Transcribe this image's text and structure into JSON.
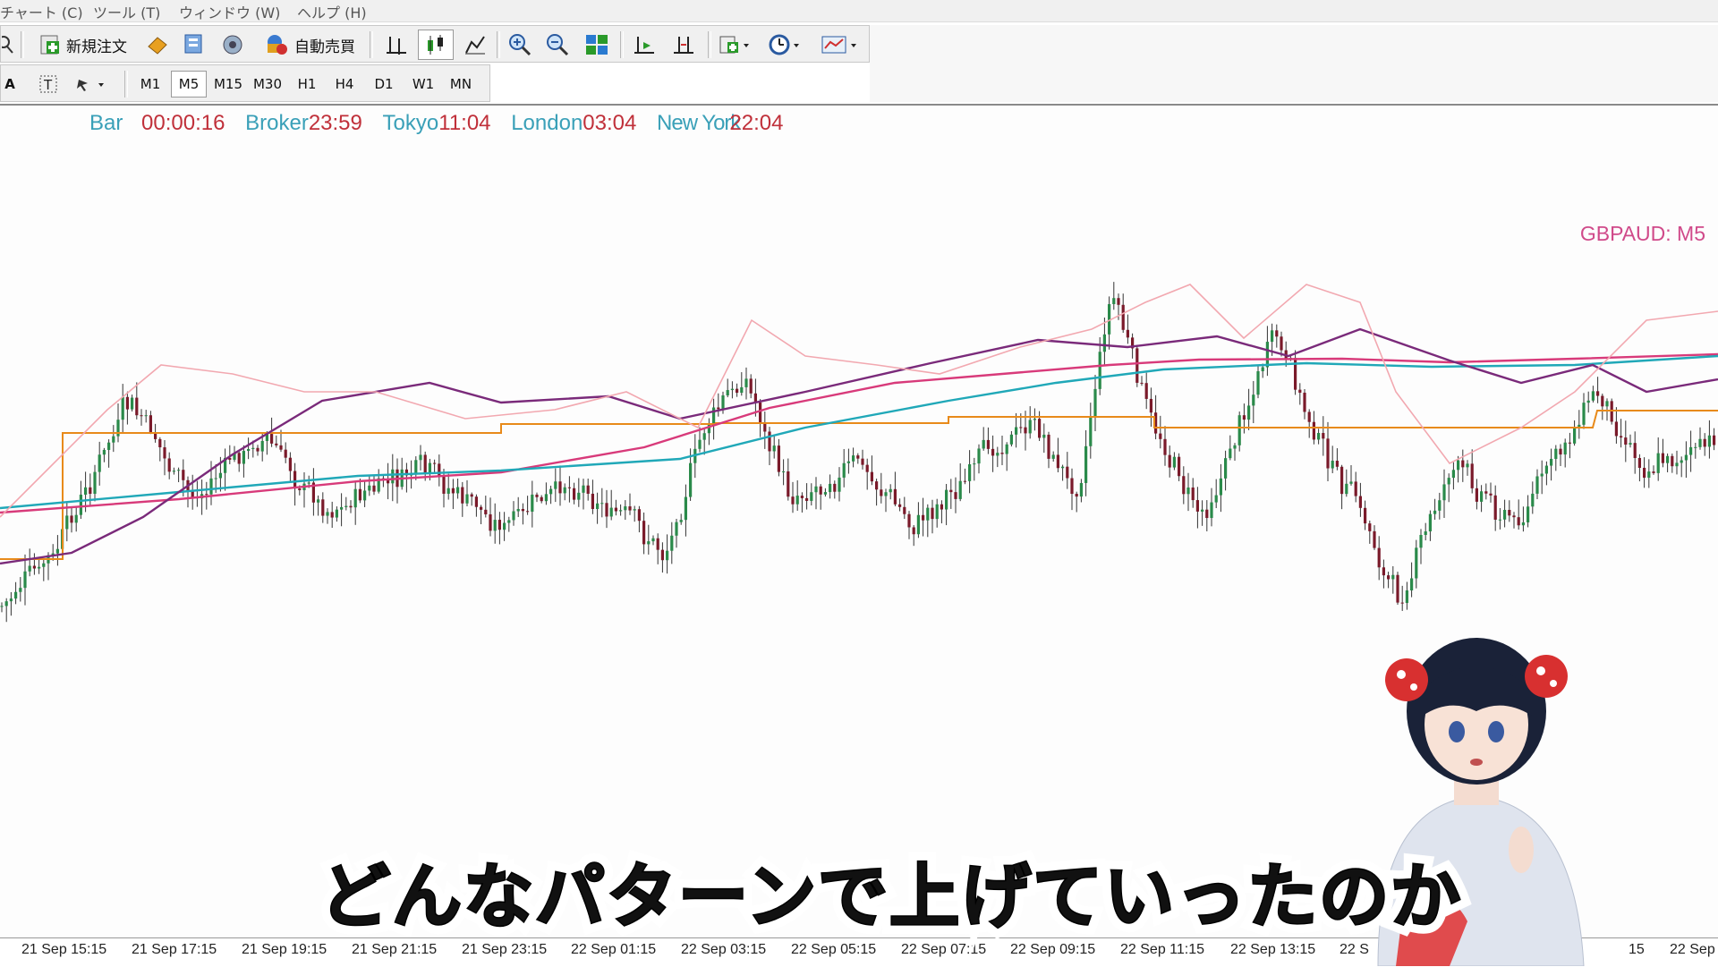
{
  "menu": [
    "チャート (C)",
    "ツール (T)",
    "ウィンドウ (W)",
    "ヘルプ (H)"
  ],
  "toolbar": {
    "new_order": "新規注文",
    "auto_trade": "自動売買",
    "icons": [
      "new-order-icon",
      "bucket-icon",
      "market-watch-icon",
      "signals-icon",
      "auto-trade-icon",
      "bar-chart-icon",
      "candlestick-icon",
      "line-chart-icon",
      "zoom-in-icon",
      "zoom-out-icon",
      "tile-windows-icon",
      "chart-shift-icon",
      "autoscroll-icon",
      "indicators-icon",
      "periods-icon",
      "templates-icon"
    ]
  },
  "timeframes": [
    "M1",
    "M5",
    "M15",
    "M30",
    "H1",
    "H4",
    "D1",
    "W1",
    "MN"
  ],
  "active_timeframe": "M5",
  "clock": {
    "bar_label": "Bar",
    "bar_value": "00:00:16",
    "broker_label": "Broker",
    "broker_value": "23:59",
    "tokyo_label": "Tokyo",
    "tokyo_value": "11:04",
    "london_label": "London",
    "london_value": "03:04",
    "newyork_label": "New York",
    "newyork_value": "22:04"
  },
  "symbol_label": "GBPAUD: M5",
  "time_axis": [
    "21 Sep 15:15",
    "21 Sep 17:15",
    "21 Sep 19:15",
    "21 Sep 21:15",
    "21 Sep 23:15",
    "22 Sep 01:15",
    "22 Sep 03:15",
    "22 Sep 05:15",
    "22 Sep 07:15",
    "22 Sep 09:15",
    "22 Sep 11:15",
    "22 Sep 13:15",
    "22 S",
    "15",
    "22 Sep"
  ],
  "subtitle": "どんなパターンで上げていったのか",
  "colors": {
    "clock_label": "#3aa0b8",
    "clock_value": "#c0303a",
    "symbol": "#d04a8a",
    "ma_orange": "#e88a1a",
    "ma_magenta": "#d83a7a",
    "ma_teal": "#20a8b8",
    "ma_purple": "#7a2a7a",
    "ma_pink": "#f2a8b0"
  }
}
